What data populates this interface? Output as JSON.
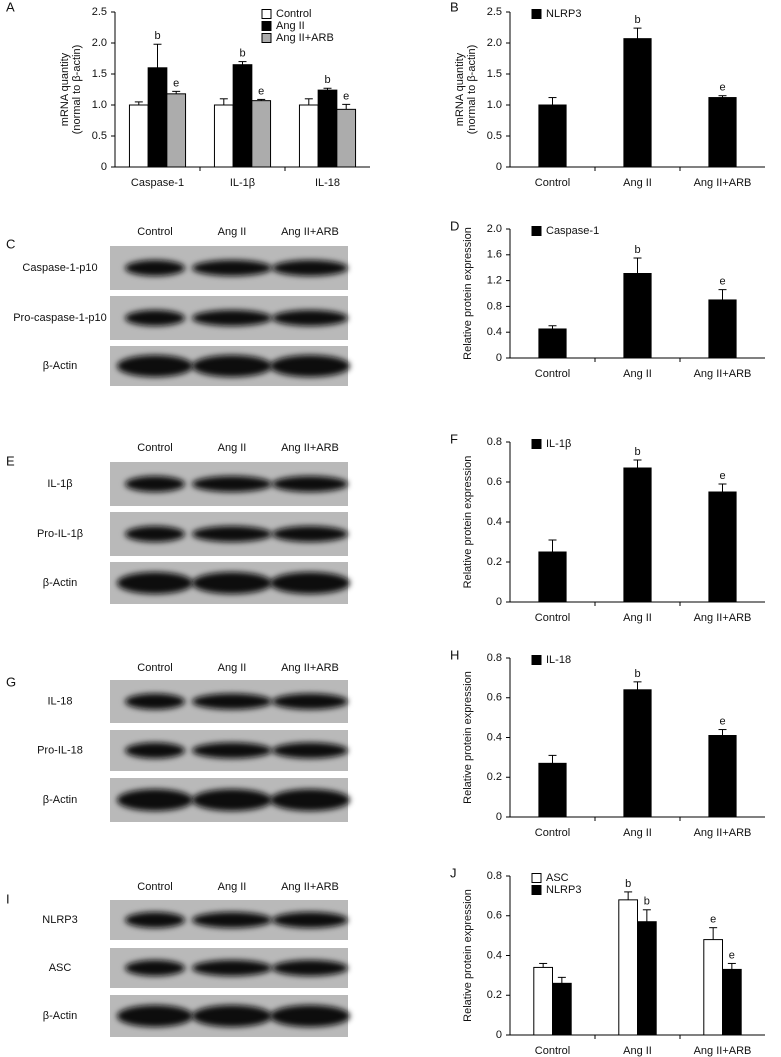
{
  "chart_data": [
    {
      "type": "bar",
      "panel": "A",
      "ylabel": [
        "mRNA quantity",
        "(normal to β-actin)"
      ],
      "categories": [
        "Caspase-1",
        "IL-1β",
        "IL-18"
      ],
      "ylim": [
        0,
        2.5
      ],
      "yticks": [
        0,
        0.5,
        {
          "value": 1,
          "label": "1.0"
        },
        1.5,
        {
          "value": 2,
          "label": "2.0"
        },
        2.5
      ],
      "legend": "upper right",
      "series": [
        {
          "name": "Control",
          "color": "#ffffff",
          "values": [
            1.0,
            1.0,
            1.0
          ],
          "errors": [
            0.05,
            0.1,
            0.1
          ],
          "annotations": [
            null,
            null,
            null
          ]
        },
        {
          "name": "Ang II",
          "color": "#000000",
          "values": [
            1.6,
            1.65,
            1.24
          ],
          "errors": [
            0.38,
            0.05,
            0.03
          ],
          "annotations": [
            "b",
            "b",
            "b"
          ]
        },
        {
          "name": "Ang II+ARB",
          "color": "#acacac",
          "values": [
            1.18,
            1.07,
            0.93
          ],
          "errors": [
            0.04,
            0.02,
            0.08
          ],
          "annotations": [
            "e",
            "e",
            "e"
          ]
        }
      ]
    },
    {
      "type": "bar",
      "panel": "B",
      "ylabel": [
        "mRNA quantity",
        "(normal to β-actin)"
      ],
      "categories": [
        "Control",
        "Ang II",
        "Ang II+ARB"
      ],
      "ylim": [
        0,
        2.5
      ],
      "yticks": [
        0,
        0.5,
        {
          "value": 1,
          "label": "1.0"
        },
        1.5,
        {
          "value": 2,
          "label": "2.0"
        },
        2.5
      ],
      "legend": "upper left",
      "series": [
        {
          "name": "NLRP3",
          "color": "#000000",
          "values": [
            1.0,
            2.07,
            1.12
          ],
          "errors": [
            0.12,
            0.17,
            0.03
          ],
          "annotations": [
            null,
            "b",
            "e"
          ]
        }
      ]
    },
    {
      "type": "bar",
      "panel": "D",
      "ylabel": "Relative protein expression",
      "categories": [
        "Control",
        "Ang II",
        "Ang II+ARB"
      ],
      "ylim": [
        0,
        2
      ],
      "yticks": [
        0,
        0.4,
        0.8,
        1.2,
        1.6,
        {
          "value": 2,
          "label": "2.0"
        }
      ],
      "legend": "upper left",
      "series": [
        {
          "name": "Caspase-1",
          "color": "#000000",
          "values": [
            0.45,
            1.31,
            0.9
          ],
          "errors": [
            0.05,
            0.24,
            0.16
          ],
          "annotations": [
            null,
            "b",
            "e"
          ]
        }
      ]
    },
    {
      "type": "bar",
      "panel": "F",
      "ylabel": "Relative protein expression",
      "categories": [
        "Control",
        "Ang II",
        "Ang II+ARB"
      ],
      "ylim": [
        0,
        0.8
      ],
      "yticks": [
        0,
        0.2,
        0.4,
        0.6,
        0.8
      ],
      "legend": "upper left",
      "series": [
        {
          "name": "IL-1β",
          "color": "#000000",
          "values": [
            0.25,
            0.67,
            0.55
          ],
          "errors": [
            0.06,
            0.04,
            0.04
          ],
          "annotations": [
            null,
            "b",
            "e"
          ]
        }
      ]
    },
    {
      "type": "bar",
      "panel": "H",
      "ylabel": "Relative protein expression",
      "categories": [
        "Control",
        "Ang II",
        "Ang II+ARB"
      ],
      "ylim": [
        0,
        0.8
      ],
      "yticks": [
        0,
        0.2,
        0.4,
        0.6,
        0.8
      ],
      "legend": "upper left",
      "series": [
        {
          "name": "IL-18",
          "color": "#000000",
          "values": [
            0.27,
            0.64,
            0.41
          ],
          "errors": [
            0.04,
            0.04,
            0.03
          ],
          "annotations": [
            null,
            "b",
            "e"
          ]
        }
      ]
    },
    {
      "type": "bar",
      "panel": "J",
      "ylabel": "Relative protein expression",
      "categories": [
        "Control",
        "Ang II",
        "Ang II+ARB"
      ],
      "ylim": [
        0,
        0.8
      ],
      "yticks": [
        0,
        0.2,
        0.4,
        0.6,
        0.8
      ],
      "legend": "upper left",
      "series": [
        {
          "name": "ASC",
          "color": "#ffffff",
          "values": [
            0.34,
            0.68,
            0.48
          ],
          "errors": [
            0.02,
            0.04,
            0.06
          ],
          "annotations": [
            null,
            "b",
            "e"
          ]
        },
        {
          "name": "NLRP3",
          "color": "#000000",
          "values": [
            0.26,
            0.57,
            0.33
          ],
          "errors": [
            0.03,
            0.06,
            0.03
          ],
          "annotations": [
            null,
            "b",
            "e"
          ]
        }
      ]
    }
  ],
  "blots": [
    {
      "panel": "C",
      "columns": [
        "Control",
        "Ang II",
        "Ang II+ARB"
      ],
      "rows": [
        "Caspase-1-p10",
        "Pro-caspase-1-p10",
        "β-Actin"
      ]
    },
    {
      "panel": "E",
      "columns": [
        "Control",
        "Ang II",
        "Ang II+ARB"
      ],
      "rows": [
        "IL-1β",
        "Pro-IL-1β",
        "β-Actin"
      ]
    },
    {
      "panel": "G",
      "columns": [
        "Control",
        "Ang II",
        "Ang II+ARB"
      ],
      "rows": [
        "IL-18",
        "Pro-IL-18",
        "β-Actin"
      ]
    },
    {
      "panel": "I",
      "columns": [
        "Control",
        "Ang II",
        "Ang II+ARB"
      ],
      "rows": [
        "NLRP3",
        "ASC",
        "β-Actin"
      ]
    }
  ]
}
